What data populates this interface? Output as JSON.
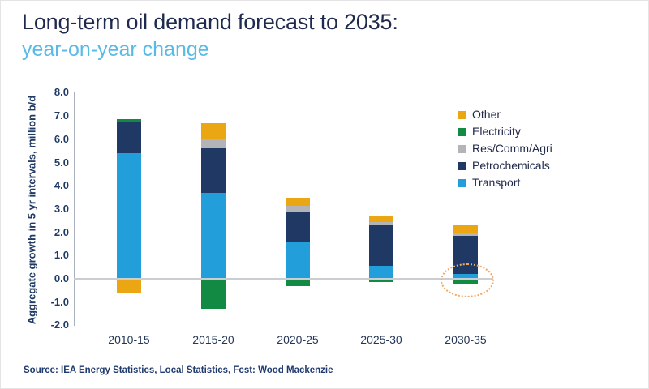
{
  "header": {
    "title": "Long-term oil demand forecast to 2035:",
    "subtitle": "year-on-year change"
  },
  "source": "Source: IEA Energy Statistics, Local Statistics, Fcst: Wood Mackenzie",
  "palette": {
    "title_navy": "#1E2A4E",
    "subtitle_blue": "#59BAE7",
    "axis_text_navy": "#1F3A66",
    "gridline_gray": "#CACDD1",
    "annotation_orange": "#F0A869"
  },
  "chart_data": {
    "type": "bar",
    "stacked": true,
    "title": "Long-term oil demand forecast to 2035: year-on-year change",
    "ylabel": "Aggregate growth in 5 yr intervals, million b/d",
    "xlabel": "",
    "ylim": [
      -2.0,
      8.0
    ],
    "ytick_step": 1.0,
    "yticks": [
      "8.0",
      "7.0",
      "6.0",
      "5.0",
      "4.0",
      "3.0",
      "2.0",
      "1.0",
      "0.0",
      "-1.0",
      "-2.0"
    ],
    "grid": "zero-line-only",
    "legend_position": "upper-right",
    "categories": [
      "2010-15",
      "2015-20",
      "2020-25",
      "2025-30",
      "2030-35"
    ],
    "series": [
      {
        "name": "Transport",
        "color": "#229FDB",
        "values": [
          5.4,
          3.7,
          1.6,
          0.55,
          0.2
        ]
      },
      {
        "name": "Petrochemicals",
        "color": "#1F3864",
        "values": [
          1.35,
          1.9,
          1.3,
          1.75,
          1.65
        ]
      },
      {
        "name": "Res/Comm/Agri",
        "color": "#B2B4B7",
        "values": [
          0.0,
          0.4,
          0.25,
          0.15,
          0.15
        ]
      },
      {
        "name": "Electricity",
        "color": "#128A43",
        "values": [
          0.1,
          -1.3,
          -0.3,
          -0.15,
          -0.2
        ]
      },
      {
        "name": "Other",
        "color": "#EAA713",
        "values": [
          -0.6,
          0.7,
          0.35,
          0.25,
          0.3
        ]
      }
    ],
    "legend_order": [
      "Other",
      "Electricity",
      "Res/Comm/Agri",
      "Petrochemicals",
      "Transport"
    ],
    "annotation": {
      "shape": "dotted-ellipse",
      "category_index": 4,
      "highlights": "near-zero transport and negative electricity in 2030-35",
      "color": "#F0A869"
    }
  }
}
